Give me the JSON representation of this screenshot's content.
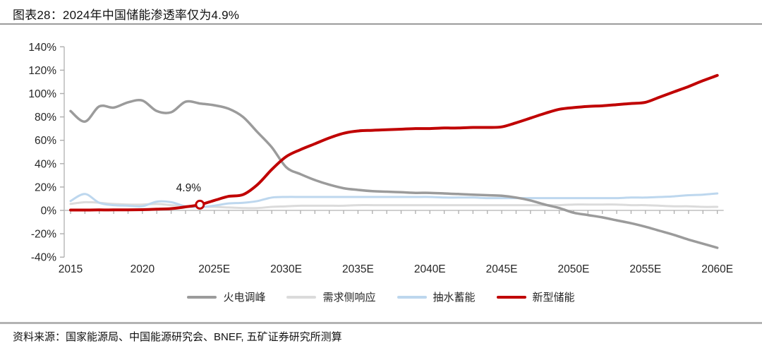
{
  "header": {
    "title": "图表28：2024年中国储能渗透率仅为4.9%"
  },
  "footer": {
    "source": "资料来源：国家能源局、中国能源研究会、BNEF, 五矿证券研究所测算"
  },
  "colors": {
    "accent_red": "#C00000",
    "axis": "#BFBFBF",
    "tick": "#ADADAD",
    "tick_label": "#262626",
    "rule_top": "#9c9c9c",
    "rule_bottom": "#b3b3b3"
  },
  "chart_data": {
    "type": "line",
    "title": "2024年中国储能渗透率仅为4.9%",
    "xlabel": "",
    "ylabel": "",
    "ylim": [
      -40,
      140
    ],
    "y_tick_step": 20,
    "grid": false,
    "legend_position": "bottom",
    "years": [
      2015,
      2016,
      2017,
      2018,
      2019,
      2020,
      2021,
      2022,
      2023,
      2024,
      2025,
      2026,
      2027,
      2028,
      2029,
      2030,
      2031,
      2032,
      2033,
      2034,
      2035,
      2036,
      2037,
      2038,
      2039,
      2040,
      2041,
      2042,
      2043,
      2044,
      2045,
      2046,
      2047,
      2048,
      2049,
      2050,
      2051,
      2052,
      2053,
      2054,
      2055,
      2056,
      2057,
      2058,
      2059,
      2060
    ],
    "x_ticks": [
      {
        "year": 2015,
        "label": "2015"
      },
      {
        "year": 2020,
        "label": "2020"
      },
      {
        "year": 2025,
        "label": "2025E"
      },
      {
        "year": 2030,
        "label": "2030E"
      },
      {
        "year": 2035,
        "label": "2035E"
      },
      {
        "year": 2040,
        "label": "2040E"
      },
      {
        "year": 2045,
        "label": "2045E"
      },
      {
        "year": 2050,
        "label": "2050E"
      },
      {
        "year": 2055,
        "label": "2055E"
      },
      {
        "year": 2060,
        "label": "2060E"
      }
    ],
    "y_ticks": [
      {
        "value": 140,
        "label": "140%"
      },
      {
        "value": 120,
        "label": "120%"
      },
      {
        "value": 100,
        "label": "100%"
      },
      {
        "value": 80,
        "label": "80%"
      },
      {
        "value": 60,
        "label": "60%"
      },
      {
        "value": 40,
        "label": "40%"
      },
      {
        "value": 20,
        "label": "20%"
      },
      {
        "value": 0,
        "label": "0%"
      },
      {
        "value": -20,
        "label": "-20%"
      },
      {
        "value": -40,
        "label": "-40%"
      }
    ],
    "series": [
      {
        "key": "thermal-peaking",
        "name": "火电调峰",
        "color": "#9B9B9B",
        "width": 3.5,
        "values": [
          85,
          76,
          89,
          88,
          92.5,
          94,
          85,
          84,
          93,
          91.5,
          90,
          87,
          80,
          67,
          54,
          37,
          31,
          26,
          22,
          19,
          17.5,
          16.5,
          16,
          15.5,
          15,
          15,
          14.5,
          14,
          13.5,
          13,
          12.5,
          11,
          8.5,
          5,
          2,
          -2,
          -4,
          -6,
          -8.5,
          -11,
          -14,
          -17.5,
          -21,
          -25,
          -28.5,
          -32
        ]
      },
      {
        "key": "demand-response",
        "name": "需求侧响应",
        "color": "#DBDBDB",
        "width": 3,
        "values": [
          5.5,
          7,
          6.5,
          5.5,
          5,
          5,
          5.5,
          4.5,
          3.5,
          3,
          3,
          2.5,
          2,
          2,
          3,
          3.5,
          4,
          4,
          4,
          4,
          4.5,
          4.5,
          4.5,
          4.5,
          4.5,
          4.5,
          4.5,
          4.5,
          4.5,
          4.5,
          4.5,
          4.5,
          4.5,
          4.5,
          4.5,
          5,
          5,
          5,
          5,
          4.5,
          4.5,
          4,
          3.5,
          3.5,
          3,
          3
        ]
      },
      {
        "key": "pumped-hydro",
        "name": "抽水蓄能",
        "color": "#BDD7EE",
        "width": 3,
        "values": [
          8,
          14,
          6.5,
          4.5,
          4,
          3.5,
          7.5,
          7,
          3.5,
          2.8,
          4,
          6,
          6.5,
          8,
          11,
          11.5,
          11.5,
          11.5,
          11.5,
          11.5,
          11.5,
          11.5,
          11.5,
          11.5,
          11.5,
          11.5,
          11,
          11,
          11,
          10.5,
          10.5,
          10.5,
          10.5,
          10.5,
          10.5,
          10.5,
          10.5,
          10.5,
          10.5,
          11,
          11,
          11.5,
          12,
          13,
          13.5,
          14.5
        ]
      },
      {
        "key": "new-storage",
        "name": "新型储能",
        "color": "#C00000",
        "width": 4,
        "values": [
          0.3,
          0.3,
          0.4,
          0.4,
          0.5,
          0.6,
          1,
          1.5,
          3,
          4.9,
          8.5,
          12,
          13.5,
          22,
          35,
          46,
          52,
          57,
          62,
          66,
          68,
          68.5,
          69,
          69.5,
          70,
          70,
          70.5,
          70.5,
          71,
          71,
          71.5,
          75,
          79,
          83,
          86.5,
          88,
          89,
          89.5,
          90.5,
          91.5,
          92.5,
          97,
          101.5,
          106,
          111,
          115.5
        ]
      }
    ],
    "annotation": {
      "label": "4.9%",
      "year": 2024,
      "value": 4.9,
      "series": "new-storage"
    }
  }
}
